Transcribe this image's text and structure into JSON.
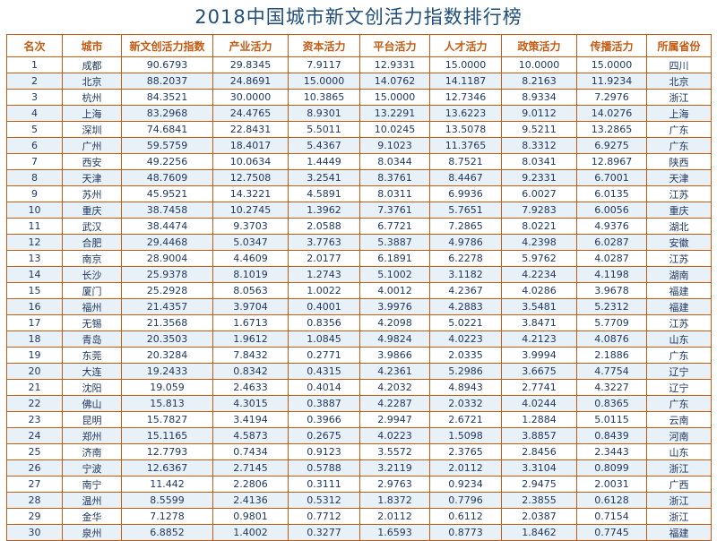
{
  "title": "2018中国城市新文创活力指数排行榜",
  "headers": [
    "名次",
    "城市",
    "新文创活力指数",
    "产业活力",
    "资本活力",
    "平台活力",
    "人才活力",
    "政策活力",
    "传播活力",
    "所属省份"
  ],
  "rows": [
    [
      "1",
      "成都",
      "90.6793",
      "29.8345",
      "7.9117",
      "12.9331",
      "15.0000",
      "10.0000",
      "15.0000",
      "四川"
    ],
    [
      "2",
      "北京",
      "88.2037",
      "24.8691",
      "15.0000",
      "14.0762",
      "14.1187",
      "8.2163",
      "11.9234",
      "北京"
    ],
    [
      "3",
      "杭州",
      "84.3521",
      "30.0000",
      "10.3865",
      "15.0000",
      "12.7346",
      "8.9334",
      "7.2976",
      "浙江"
    ],
    [
      "4",
      "上海",
      "83.2968",
      "24.4765",
      "8.9301",
      "13.2291",
      "13.6223",
      "9.0112",
      "14.0276",
      "上海"
    ],
    [
      "5",
      "深圳",
      "74.6841",
      "22.8431",
      "5.5011",
      "10.0245",
      "13.5078",
      "9.5211",
      "13.2865",
      "广东"
    ],
    [
      "6",
      "广州",
      "59.5759",
      "18.4017",
      "5.4367",
      "9.1023",
      "11.3765",
      "8.3312",
      "6.9275",
      "广东"
    ],
    [
      "7",
      "西安",
      "49.2256",
      "10.0634",
      "1.4449",
      "8.0344",
      "8.7521",
      "8.0341",
      "12.8967",
      "陕西"
    ],
    [
      "8",
      "天津",
      "48.7609",
      "12.7508",
      "3.2541",
      "8.3761",
      "8.4467",
      "9.2331",
      "6.7001",
      "天津"
    ],
    [
      "9",
      "苏州",
      "45.9521",
      "14.3221",
      "4.5891",
      "8.0311",
      "6.9936",
      "6.0027",
      "6.0135",
      "江苏"
    ],
    [
      "10",
      "重庆",
      "38.7458",
      "10.2745",
      "1.3962",
      "7.3761",
      "5.7651",
      "7.9283",
      "6.0056",
      "重庆"
    ],
    [
      "11",
      "武汉",
      "38.4474",
      "9.3703",
      "2.0588",
      "6.7721",
      "7.2865",
      "8.0221",
      "4.9376",
      "湖北"
    ],
    [
      "12",
      "合肥",
      "29.4468",
      "5.0347",
      "3.7763",
      "5.3887",
      "4.9786",
      "4.2398",
      "6.0287",
      "安徽"
    ],
    [
      "13",
      "南京",
      "28.9004",
      "4.4609",
      "2.0177",
      "6.1891",
      "6.2278",
      "5.9762",
      "4.0287",
      "江苏"
    ],
    [
      "14",
      "长沙",
      "25.9378",
      "8.1019",
      "1.2743",
      "5.1002",
      "3.1182",
      "4.2234",
      "4.1198",
      "湖南"
    ],
    [
      "15",
      "厦门",
      "25.2928",
      "8.0563",
      "1.0022",
      "4.0012",
      "4.2367",
      "4.0286",
      "3.9678",
      "福建"
    ],
    [
      "16",
      "福州",
      "21.4357",
      "3.9704",
      "0.4001",
      "3.9976",
      "4.2883",
      "3.5481",
      "5.2312",
      "福建"
    ],
    [
      "17",
      "无锡",
      "21.3568",
      "1.6713",
      "0.8356",
      "4.2098",
      "5.0221",
      "3.8471",
      "5.7709",
      "江苏"
    ],
    [
      "18",
      "青岛",
      "20.3503",
      "1.9612",
      "1.0845",
      "4.9824",
      "4.0223",
      "4.2123",
      "4.0876",
      "山东"
    ],
    [
      "19",
      "东莞",
      "20.3284",
      "7.8432",
      "0.2771",
      "3.9866",
      "2.0335",
      "3.9994",
      "2.1886",
      "广东"
    ],
    [
      "20",
      "大连",
      "19.2433",
      "0.8342",
      "0.4315",
      "4.2361",
      "5.2986",
      "3.6675",
      "4.7754",
      "辽宁"
    ],
    [
      "21",
      "沈阳",
      "19.059",
      "2.4633",
      "0.4014",
      "4.2032",
      "4.8943",
      "2.7741",
      "4.3227",
      "辽宁"
    ],
    [
      "22",
      "佛山",
      "15.813",
      "4.3015",
      "0.3887",
      "4.2287",
      "2.0332",
      "4.0244",
      "0.8365",
      "广东"
    ],
    [
      "23",
      "昆明",
      "15.7827",
      "3.4194",
      "0.3966",
      "2.9947",
      "2.6721",
      "1.2884",
      "5.0115",
      "云南"
    ],
    [
      "24",
      "郑州",
      "15.1165",
      "4.5873",
      "0.2675",
      "4.0223",
      "1.5098",
      "3.8857",
      "0.8439",
      "河南"
    ],
    [
      "25",
      "济南",
      "12.7793",
      "0.7434",
      "0.9123",
      "3.5572",
      "2.3765",
      "2.8456",
      "2.3443",
      "山东"
    ],
    [
      "26",
      "宁波",
      "12.6367",
      "2.7145",
      "0.5788",
      "3.2119",
      "2.0112",
      "3.3104",
      "0.8099",
      "浙江"
    ],
    [
      "27",
      "南宁",
      "11.442",
      "2.2806",
      "0.3111",
      "2.9763",
      "0.9234",
      "2.9475",
      "2.0031",
      "广西"
    ],
    [
      "28",
      "温州",
      "8.5599",
      "2.4136",
      "0.5312",
      "1.8372",
      "0.7796",
      "2.3855",
      "0.6128",
      "浙江"
    ],
    [
      "29",
      "金华",
      "7.1278",
      "0.9801",
      "0.7712",
      "2.0112",
      "0.6112",
      "2.0387",
      "0.7154",
      "浙江"
    ],
    [
      "30",
      "泉州",
      "6.8852",
      "1.4002",
      "0.3277",
      "1.6593",
      "0.8773",
      "1.8462",
      "0.7745",
      "福建"
    ]
  ],
  "colors": {
    "title": "#1f4e79",
    "header": "#c55a11",
    "border": "#c55a11",
    "cell": "#1f3864",
    "stripe": "#e8f0f8"
  }
}
